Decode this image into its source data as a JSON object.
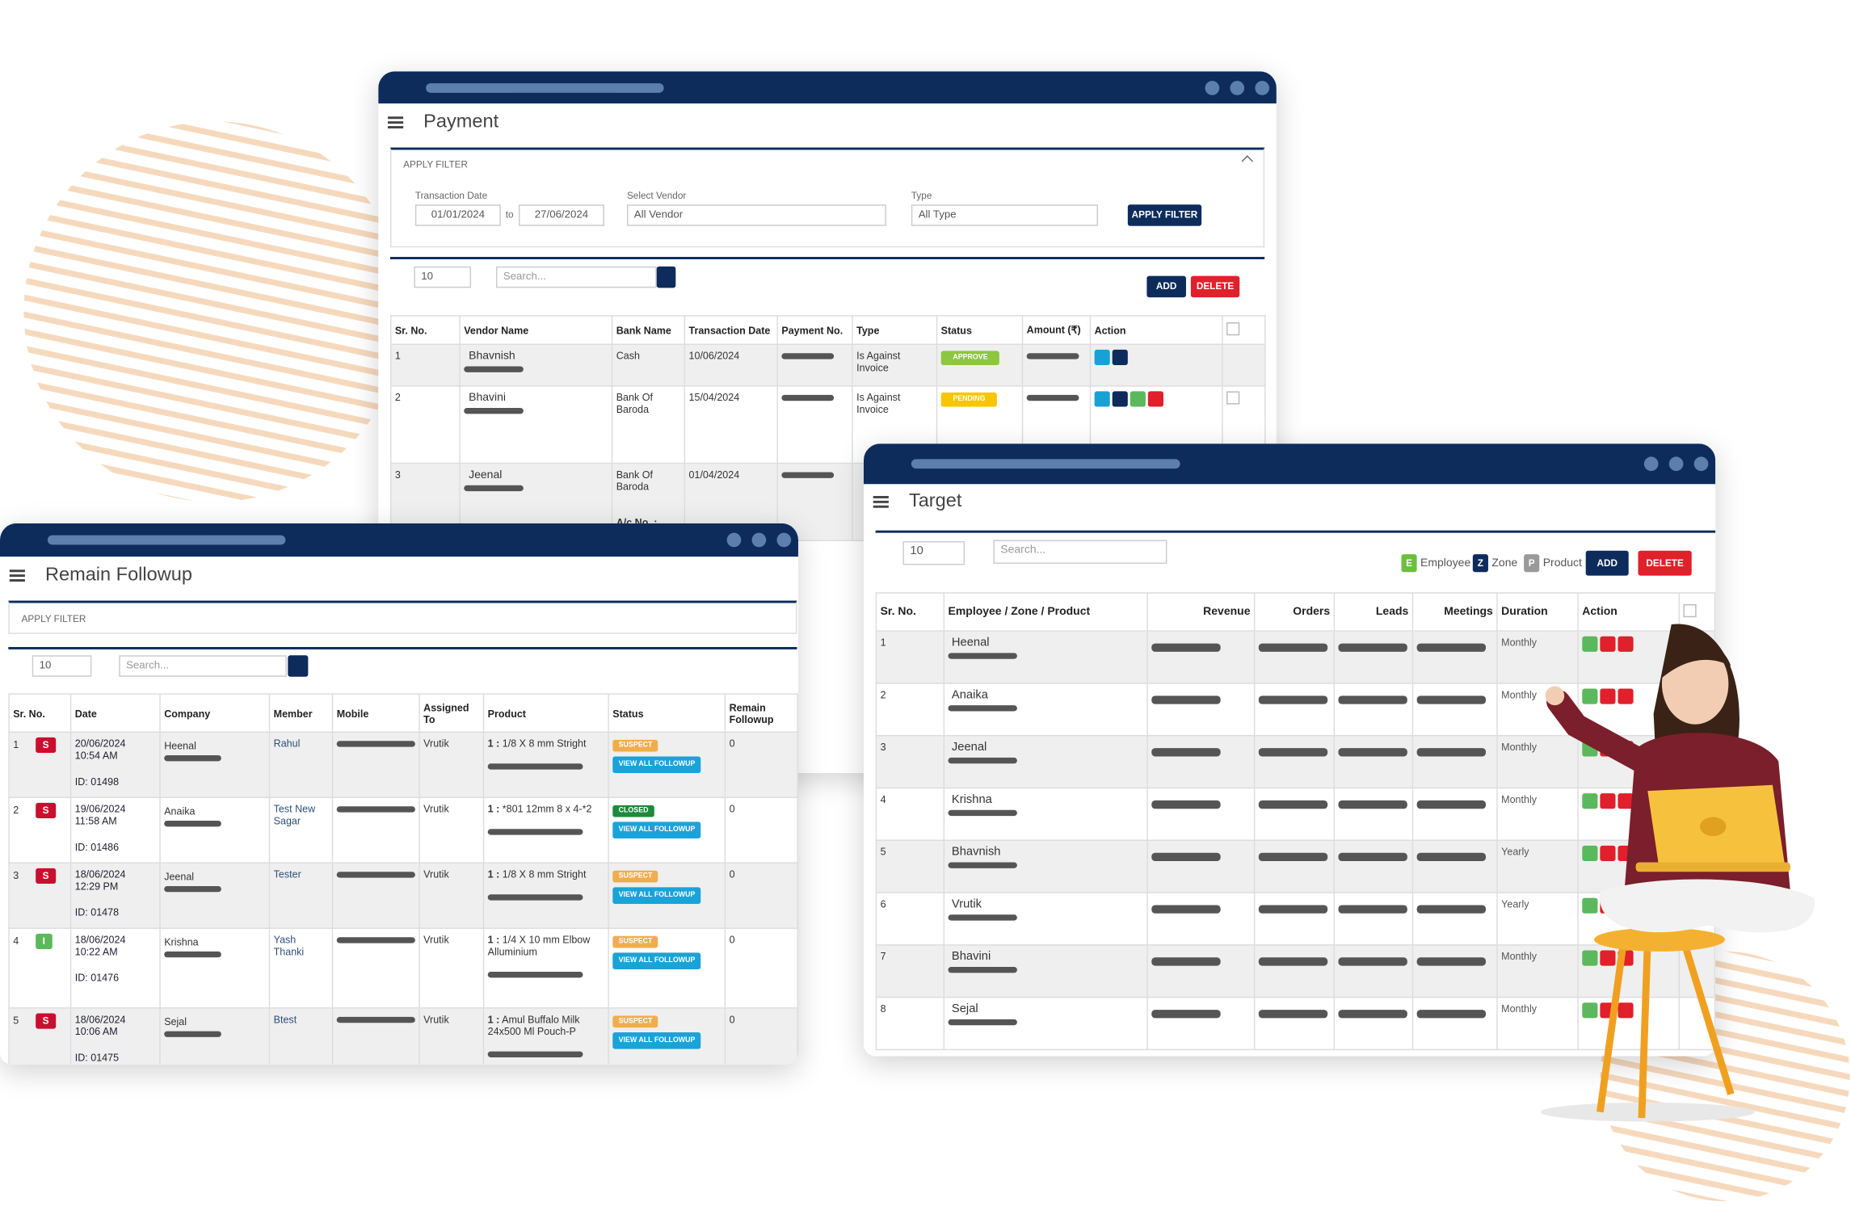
{
  "payment": {
    "title": "Payment",
    "filter": {
      "label": "APPLY FILTER",
      "date_label": "Transaction Date",
      "date_from": "01/01/2024",
      "to": "to",
      "date_to": "27/06/2024",
      "vendor_label": "Select Vendor",
      "vendor": "All Vendor",
      "type_label": "Type",
      "type": "All Type",
      "button": "APPLY FILTER"
    },
    "page_size": "10",
    "search": "Search...",
    "add": "ADD",
    "delete": "DELETE",
    "columns": [
      "Sr. No.",
      "Vendor Name",
      "Bank Name",
      "Transaction Date",
      "Payment No.",
      "Type",
      "Status",
      "Amount (₹)",
      "Action"
    ],
    "rows": [
      {
        "sr": "1",
        "vendor": "Bhavnish",
        "bank": "Cash",
        "date": "10/06/2024",
        "type": "Is Against Invoice",
        "status": "APPROVE",
        "status_color": "#8dc63f"
      },
      {
        "sr": "2",
        "vendor": "Bhavini",
        "bank": "Bank Of Baroda",
        "date": "15/04/2024",
        "type": "Is Against Invoice",
        "status": "PENDING",
        "status_color": "#f7c600"
      },
      {
        "sr": "3",
        "vendor": "Jeenal",
        "bank": "Bank Of Baroda",
        "date": "01/04/2024",
        "account": "A/c No. :"
      }
    ]
  },
  "followup": {
    "title": "Remain Followup",
    "filter": "APPLY FILTER",
    "page_size": "10",
    "search": "Search...",
    "view_all": "VIEW ALL FOLLOWUP",
    "columns": [
      "Sr. No.",
      "Date",
      "Company",
      "Member",
      "Mobile",
      "Assigned To",
      "Product",
      "Status",
      "Remain Followup"
    ],
    "rows": [
      {
        "sr": "1",
        "badge": "S",
        "badge_color": "#c8102e",
        "date": "20/06/2024",
        "time": "10:54 AM",
        "id": "ID: 01498",
        "company": "Heenal",
        "member": "Rahul",
        "assigned": "Vrutik",
        "qty": "1 :",
        "product": "1/8 X 8 mm Stright",
        "status": "SUSPECT",
        "status_color": "#f0ad4e",
        "remain": "0"
      },
      {
        "sr": "2",
        "badge": "S",
        "badge_color": "#c8102e",
        "date": "19/06/2024",
        "time": "11:58 AM",
        "id": "ID: 01486",
        "company": "Anaika",
        "member": "Test New Sagar",
        "assigned": "Vrutik",
        "qty": "1 :",
        "product": "*801 12mm 8 x 4-*2",
        "status": "CLOSED",
        "status_color": "#1e8a3c",
        "remain": "0"
      },
      {
        "sr": "3",
        "badge": "S",
        "badge_color": "#c8102e",
        "date": "18/06/2024",
        "time": "12:29 PM",
        "id": "ID: 01478",
        "company": "Jeenal",
        "member": "Tester",
        "assigned": "Vrutik",
        "qty": "1 :",
        "product": "1/8 X 8 mm Stright",
        "status": "SUSPECT",
        "status_color": "#f0ad4e",
        "remain": "0"
      },
      {
        "sr": "4",
        "badge": "I",
        "badge_color": "#5cb85c",
        "date": "18/06/2024",
        "time": "10:22 AM",
        "id": "ID: 01476",
        "company": "Krishna",
        "member": "Yash Thanki",
        "assigned": "Vrutik",
        "qty": "1 :",
        "product": "1/4 X 10 mm Elbow Alluminium",
        "status": "SUSPECT",
        "status_color": "#f0ad4e",
        "remain": "0"
      },
      {
        "sr": "5",
        "badge": "S",
        "badge_color": "#c8102e",
        "date": "18/06/2024",
        "time": "10:06 AM",
        "id": "ID: 01475",
        "company": "Sejal",
        "member": "Btest",
        "assigned": "Vrutik",
        "qty": "1 :",
        "product": "Amul Buffalo Milk 24x500 Ml Pouch-P",
        "status": "SUSPECT",
        "status_color": "#f0ad4e",
        "remain": "0"
      }
    ]
  },
  "target": {
    "title": "Target",
    "page_size": "10",
    "search": "Search...",
    "add": "ADD",
    "delete": "DELETE",
    "legend": [
      {
        "key": "E",
        "label": "Employee",
        "color": "#6cbf3f"
      },
      {
        "key": "Z",
        "label": "Zone",
        "color": "#0d2c5c"
      },
      {
        "key": "P",
        "label": "Product",
        "color": "#9a9a9a"
      }
    ],
    "columns": [
      "Sr. No.",
      "Employee / Zone / Product",
      "Revenue",
      "Orders",
      "Leads",
      "Meetings",
      "Duration",
      "Action"
    ],
    "rows": [
      {
        "sr": "1",
        "name": "Heenal",
        "duration": "Monthly"
      },
      {
        "sr": "2",
        "name": "Anaika",
        "duration": "Monthly"
      },
      {
        "sr": "3",
        "name": "Jeenal",
        "duration": "Monthly"
      },
      {
        "sr": "4",
        "name": "Krishna",
        "duration": "Monthly"
      },
      {
        "sr": "5",
        "name": "Bhavnish",
        "duration": "Yearly"
      },
      {
        "sr": "6",
        "name": "Vrutik",
        "duration": "Yearly"
      },
      {
        "sr": "7",
        "name": "Bhavini",
        "duration": "Monthly"
      },
      {
        "sr": "8",
        "name": "Sejal",
        "duration": "Monthly"
      }
    ]
  }
}
